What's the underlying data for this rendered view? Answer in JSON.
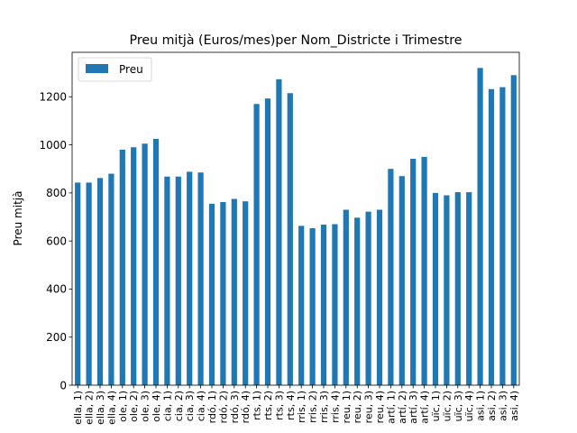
{
  "chart_data": {
    "type": "bar",
    "title": "Preu mitjà (Euros/mes)per Nom_Districte i Trimestre",
    "xlabel": "",
    "ylabel": "Preu mitjà",
    "ylim": [
      0,
      1385
    ],
    "yticks": [
      0,
      200,
      400,
      600,
      800,
      1000,
      1200
    ],
    "grid": false,
    "legend_position": "top-left",
    "bar_color": "#1f77b4",
    "categories": [
      "ella, 1)",
      "ella, 2)",
      "ella, 3)",
      "ella, 4)",
      "ole, 1)",
      "ole, 2)",
      "ole, 3)",
      "ole, 4)",
      "cia, 1)",
      "cia, 2)",
      "cia, 3)",
      "cia, 4)",
      "rdó, 1)",
      "rdó, 2)",
      "rdó, 3)",
      "rdó, 4)",
      "rts, 1)",
      "rts, 2)",
      "rts, 3)",
      "rts, 4)",
      "rris, 1)",
      "rris, 2)",
      "rris, 3)",
      "rris, 4)",
      "reu, 1)",
      "reu, 2)",
      "reu, 3)",
      "reu, 4)",
      "artí, 1)",
      "artí, 2)",
      "artí, 3)",
      "artí, 4)",
      "uïc, 1)",
      "uïc, 2)",
      "uïc, 3)",
      "uïc, 4)",
      "asi, 1)",
      "asi, 2)",
      "asi, 3)",
      "asi, 4)"
    ],
    "series": [
      {
        "name": "Preu",
        "values": [
          843,
          843,
          862,
          880,
          980,
          990,
          1005,
          1025,
          868,
          868,
          888,
          885,
          755,
          762,
          775,
          765,
          1170,
          1193,
          1273,
          1215,
          663,
          653,
          668,
          670,
          730,
          697,
          722,
          730,
          900,
          870,
          942,
          950,
          800,
          790,
          803,
          803,
          1320,
          1232,
          1240,
          1290
        ]
      }
    ]
  }
}
